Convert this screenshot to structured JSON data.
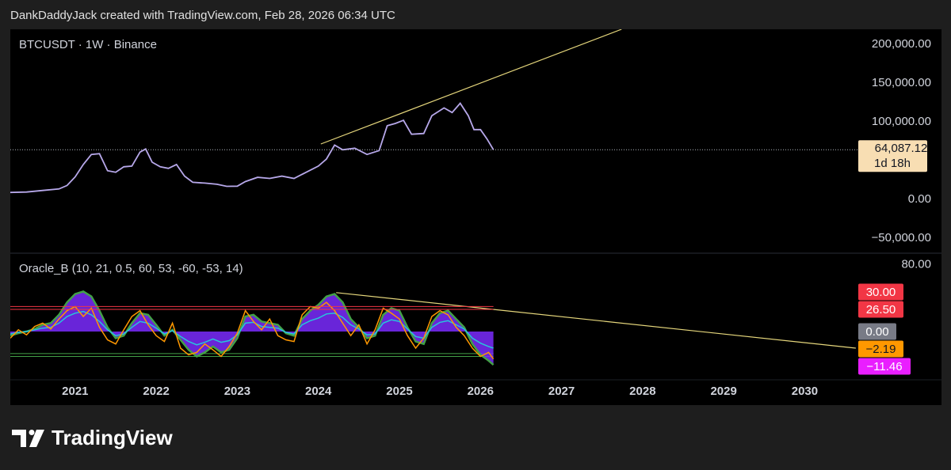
{
  "header": "DankDaddyJack created with TradingView.com, Feb 28, 2026 06:34 UTC",
  "brand": "TradingView",
  "chart_data": [
    {
      "type": "line",
      "title": "BTCUSDT · 1W · Binance",
      "color": "#b7a8ea",
      "x": [
        2020.2,
        2020.4,
        2020.6,
        2020.8,
        2020.9,
        2021.0,
        2021.1,
        2021.2,
        2021.3,
        2021.4,
        2021.5,
        2021.6,
        2021.7,
        2021.8,
        2021.87,
        2021.95,
        2022.05,
        2022.15,
        2022.25,
        2022.35,
        2022.45,
        2022.6,
        2022.75,
        2022.87,
        2023.0,
        2023.1,
        2023.25,
        2023.4,
        2023.55,
        2023.7,
        2023.85,
        2024.0,
        2024.1,
        2024.2,
        2024.3,
        2024.45,
        2024.6,
        2024.75,
        2024.85,
        2024.95,
        2025.05,
        2025.15,
        2025.3,
        2025.4,
        2025.55,
        2025.65,
        2025.75,
        2025.85,
        2025.92,
        2026.0,
        2026.08,
        2026.16
      ],
      "values": [
        9000,
        9500,
        11500,
        13500,
        18000,
        29000,
        45000,
        58000,
        59000,
        37000,
        35000,
        42000,
        43000,
        61000,
        65000,
        48000,
        42000,
        40000,
        45000,
        30000,
        22000,
        21000,
        19500,
        16800,
        17000,
        23000,
        28500,
        27000,
        30000,
        27000,
        35000,
        43000,
        52000,
        70000,
        64000,
        66000,
        58000,
        63000,
        95000,
        98000,
        102000,
        84000,
        85000,
        108000,
        118000,
        112000,
        124000,
        108000,
        90000,
        90000,
        78000,
        64087.12
      ],
      "xlim": [
        2020.2,
        2030.68
      ],
      "ylim": [
        -69400,
        219400
      ],
      "yticks": [
        {
          "value": 200000,
          "label": "200,000.00"
        },
        {
          "value": 150000,
          "label": "150,000.00"
        },
        {
          "value": 100000,
          "label": "100,000.00"
        },
        {
          "value": 0,
          "label": "0.00"
        },
        {
          "value": -50000,
          "label": "−50,000.00"
        }
      ],
      "lines": [
        {
          "x": [
            2024.03,
            2027.74
          ],
          "y": [
            71400,
            219400
          ],
          "color": "#e6d77c"
        }
      ],
      "markers": [
        {
          "value": 64087.12,
          "label": "64,087.12",
          "note": "1d 18h",
          "color": "#f8deb3",
          "text_color": "#131722"
        }
      ]
    },
    {
      "type": "line",
      "title": "Oracle_B (10, 21, 0.5, 60, 53, -60, -53, 14)",
      "x": [
        2020.2,
        2020.3,
        2020.4,
        2020.5,
        2020.6,
        2020.7,
        2020.8,
        2020.9,
        2021.0,
        2021.1,
        2021.2,
        2021.3,
        2021.4,
        2021.5,
        2021.6,
        2021.7,
        2021.8,
        2021.9,
        2022.0,
        2022.1,
        2022.2,
        2022.3,
        2022.4,
        2022.5,
        2022.6,
        2022.7,
        2022.8,
        2022.9,
        2023.0,
        2023.1,
        2023.2,
        2023.3,
        2023.4,
        2023.5,
        2023.6,
        2023.7,
        2023.8,
        2023.9,
        2024.0,
        2024.1,
        2024.2,
        2024.3,
        2024.4,
        2024.5,
        2024.6,
        2024.7,
        2024.8,
        2024.9,
        2025.0,
        2025.1,
        2025.2,
        2025.3,
        2025.4,
        2025.5,
        2025.6,
        2025.7,
        2025.8,
        2025.9,
        2026.0,
        2026.1,
        2026.16
      ],
      "series": [
        {
          "color": "#7b2cff",
          "area": true,
          "outline": "#43a047",
          "values": [
            -5,
            -2,
            0,
            3,
            8,
            10,
            20,
            35,
            45,
            48,
            42,
            25,
            5,
            -8,
            -5,
            10,
            22,
            20,
            8,
            -5,
            2,
            -10,
            -22,
            -30,
            -25,
            -18,
            -25,
            -22,
            -8,
            18,
            20,
            12,
            10,
            8,
            -2,
            -5,
            15,
            25,
            32,
            42,
            45,
            35,
            15,
            5,
            -8,
            -5,
            20,
            28,
            25,
            5,
            -12,
            -15,
            10,
            22,
            25,
            15,
            5,
            -15,
            -28,
            -35,
            -40
          ]
        },
        {
          "color": "#26c6da",
          "values": [
            -3,
            -1,
            0,
            2,
            4,
            5,
            10,
            18,
            22,
            24,
            20,
            12,
            2,
            -5,
            -3,
            5,
            12,
            10,
            4,
            -3,
            1,
            -6,
            -12,
            -16,
            -13,
            -9,
            -13,
            -11,
            -4,
            10,
            11,
            6,
            5,
            4,
            -1,
            -3,
            8,
            13,
            16,
            21,
            22,
            17,
            8,
            3,
            -4,
            -3,
            10,
            14,
            12,
            3,
            -6,
            -8,
            5,
            11,
            13,
            8,
            3,
            -8,
            -14,
            -18,
            -20
          ]
        },
        {
          "color": "#ff9800",
          "values": [
            -8,
            2,
            -4,
            6,
            10,
            3,
            15,
            25,
            30,
            18,
            28,
            5,
            -10,
            -15,
            2,
            18,
            25,
            8,
            -5,
            -12,
            10,
            -20,
            -28,
            -25,
            -15,
            -22,
            -30,
            -18,
            -2,
            25,
            12,
            2,
            15,
            -5,
            -10,
            -12,
            20,
            30,
            28,
            35,
            25,
            10,
            -5,
            8,
            -15,
            2,
            28,
            22,
            15,
            -5,
            -20,
            -8,
            18,
            25,
            20,
            5,
            -5,
            -20,
            -30,
            -25,
            -33
          ]
        }
      ],
      "xlim": [
        2020.2,
        2030.68
      ],
      "xticks": [
        2021,
        2022,
        2023,
        2024,
        2025,
        2026,
        2027,
        2028,
        2029,
        2030
      ],
      "ylim": [
        -58,
        94
      ],
      "yticks": [
        {
          "value": 80,
          "label": "80.00"
        }
      ],
      "hlines": [
        {
          "value": -26.5,
          "color": "#43a047"
        },
        {
          "value": -30,
          "color": "#43a047"
        }
      ],
      "lines": [
        {
          "x": [
            2024.22,
            2030.63
          ],
          "y": [
            46.7,
            -20
          ],
          "color": "#e6d77c"
        }
      ],
      "markers": [
        {
          "value": 30,
          "label": "30.00",
          "color": "#f23645",
          "text_color": "#ffffff",
          "hline": true
        },
        {
          "value": 26.5,
          "label": "26.50",
          "color": "#f23645",
          "text_color": "#ffffff",
          "hline": true
        },
        {
          "value": 0,
          "label": "0.00",
          "color": "#787b86",
          "text_color": "#ffffff"
        },
        {
          "value": -2.19,
          "label": "−2.19",
          "color": "#ff9800",
          "text_color": "#131722"
        },
        {
          "value": -11.46,
          "label": "−11.46",
          "color": "#e91eff",
          "text_color": "#ffffff"
        }
      ]
    }
  ]
}
